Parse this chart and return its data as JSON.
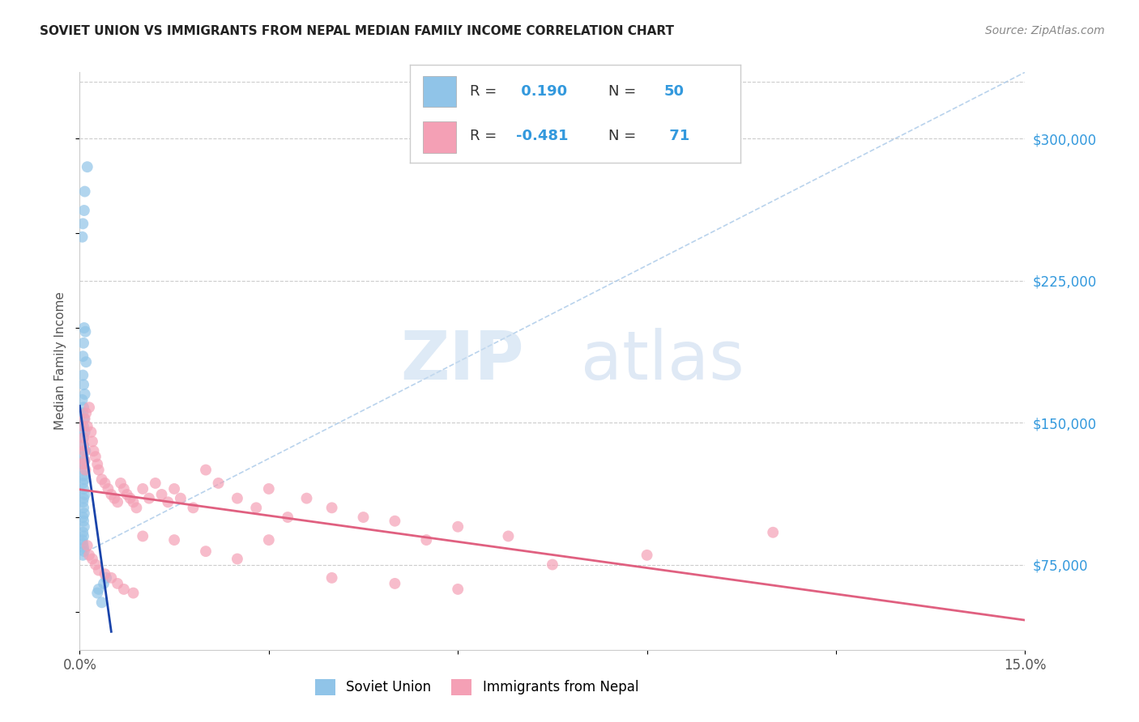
{
  "title": "SOVIET UNION VS IMMIGRANTS FROM NEPAL MEDIAN FAMILY INCOME CORRELATION CHART",
  "source": "Source: ZipAtlas.com",
  "ylabel": "Median Family Income",
  "y_ticks": [
    75000,
    150000,
    225000,
    300000
  ],
  "y_tick_labels": [
    "$75,000",
    "$150,000",
    "$225,000",
    "$300,000"
  ],
  "xmin": 0.0,
  "xmax": 15.0,
  "ymin": 30000,
  "ymax": 335000,
  "blue_R": 0.19,
  "blue_N": 50,
  "pink_R": -0.481,
  "pink_N": 71,
  "blue_color": "#90C4E8",
  "pink_color": "#F4A0B5",
  "blue_line_color": "#1A44AA",
  "pink_line_color": "#E06080",
  "diag_line_color": "#A8C8E8",
  "legend_label_blue": "Soviet Union",
  "legend_label_pink": "Immigrants from Nepal",
  "blue_scatter_x": [
    0.05,
    0.07,
    0.12,
    0.04,
    0.08,
    0.06,
    0.09,
    0.05,
    0.07,
    0.1,
    0.05,
    0.06,
    0.08,
    0.04,
    0.06,
    0.05,
    0.07,
    0.06,
    0.08,
    0.05,
    0.06,
    0.09,
    0.05,
    0.07,
    0.04,
    0.05,
    0.06,
    0.07,
    0.05,
    0.06,
    0.08,
    0.06,
    0.05,
    0.06,
    0.07,
    0.05,
    0.06,
    0.07,
    0.05,
    0.06,
    0.04,
    0.05,
    0.06,
    0.07,
    0.05,
    0.38,
    0.42,
    0.35,
    0.3,
    0.28
  ],
  "blue_scatter_y": [
    255000,
    262000,
    285000,
    248000,
    272000,
    192000,
    198000,
    185000,
    200000,
    182000,
    175000,
    170000,
    165000,
    162000,
    158000,
    155000,
    152000,
    148000,
    145000,
    142000,
    138000,
    135000,
    132000,
    130000,
    128000,
    125000,
    122000,
    120000,
    118000,
    115000,
    112000,
    110000,
    108000,
    105000,
    102000,
    100000,
    98000,
    95000,
    92000,
    90000,
    88000,
    86000,
    84000,
    82000,
    80000,
    65000,
    68000,
    55000,
    62000,
    60000
  ],
  "pink_scatter_x": [
    0.04,
    0.06,
    0.05,
    0.07,
    0.08,
    0.06,
    0.09,
    0.1,
    0.12,
    0.08,
    0.15,
    0.18,
    0.2,
    0.22,
    0.25,
    0.28,
    0.3,
    0.35,
    0.4,
    0.45,
    0.5,
    0.55,
    0.6,
    0.65,
    0.7,
    0.75,
    0.8,
    0.85,
    0.9,
    1.0,
    1.1,
    1.2,
    1.3,
    1.4,
    1.5,
    1.6,
    1.8,
    2.0,
    2.2,
    2.5,
    2.8,
    3.0,
    3.3,
    3.6,
    4.0,
    4.5,
    5.0,
    5.5,
    6.0,
    6.8,
    0.12,
    0.15,
    0.2,
    0.25,
    0.3,
    0.4,
    0.5,
    0.6,
    0.7,
    0.85,
    1.0,
    1.5,
    2.0,
    2.5,
    3.0,
    4.0,
    5.0,
    6.0,
    11.0,
    9.0,
    7.5
  ],
  "pink_scatter_y": [
    148000,
    142000,
    138000,
    135000,
    130000,
    128000,
    125000,
    155000,
    148000,
    152000,
    158000,
    145000,
    140000,
    135000,
    132000,
    128000,
    125000,
    120000,
    118000,
    115000,
    112000,
    110000,
    108000,
    118000,
    115000,
    112000,
    110000,
    108000,
    105000,
    115000,
    110000,
    118000,
    112000,
    108000,
    115000,
    110000,
    105000,
    125000,
    118000,
    110000,
    105000,
    115000,
    100000,
    110000,
    105000,
    100000,
    98000,
    88000,
    95000,
    90000,
    85000,
    80000,
    78000,
    75000,
    72000,
    70000,
    68000,
    65000,
    62000,
    60000,
    90000,
    88000,
    82000,
    78000,
    88000,
    68000,
    65000,
    62000,
    92000,
    80000,
    75000
  ]
}
